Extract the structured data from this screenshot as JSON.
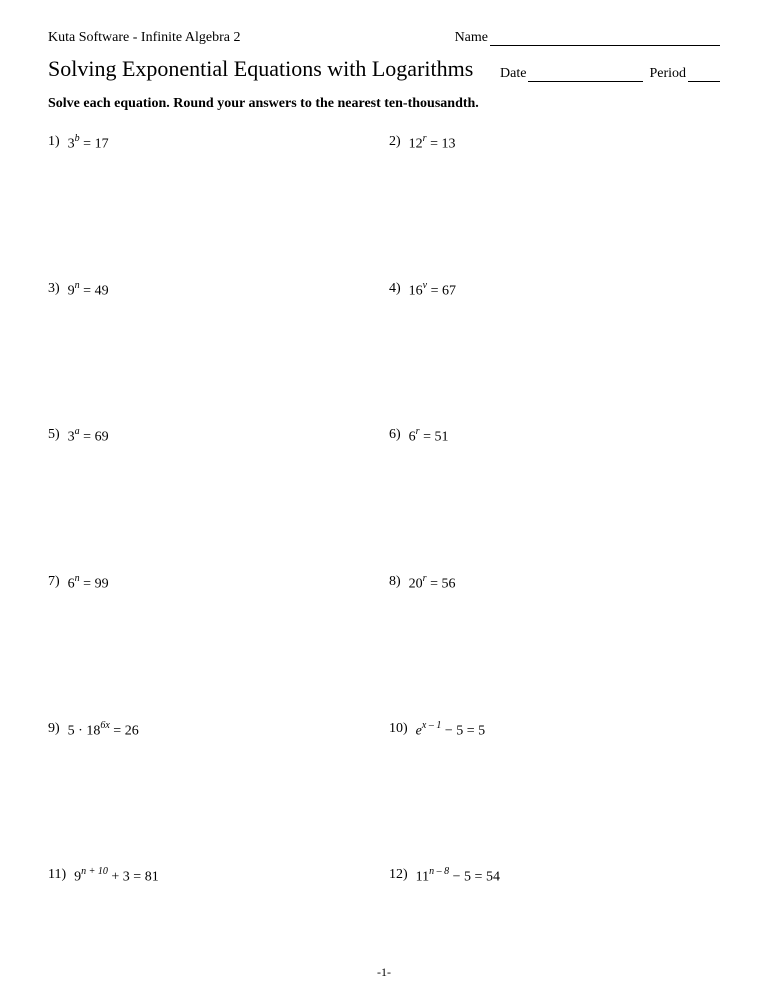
{
  "header": {
    "software": "Kuta Software - Infinite Algebra 2",
    "name_label": "Name"
  },
  "title": "Solving Exponential Equations with Logarithms",
  "date_label": "Date",
  "period_label": "Period",
  "instructions": "Solve each equation.  Round your answers to the nearest ten-thousandth.",
  "problems": [
    {
      "num": "1)",
      "base": "3",
      "exp": "b",
      "rhs": " = 17"
    },
    {
      "num": "2)",
      "base": "12",
      "exp": "r",
      "rhs": " = 13"
    },
    {
      "num": "3)",
      "base": "9",
      "exp": "n",
      "rhs": " = 49"
    },
    {
      "num": "4)",
      "base": "16",
      "exp": "v",
      "rhs": " = 67"
    },
    {
      "num": "5)",
      "base": "3",
      "exp": "a",
      "rhs": " = 69"
    },
    {
      "num": "6)",
      "base": "6",
      "exp": "r",
      "rhs": " = 51"
    },
    {
      "num": "7)",
      "base": "6",
      "exp": "n",
      "rhs": " = 99"
    },
    {
      "num": "8)",
      "base": "20",
      "exp": "r",
      "rhs": " = 56"
    },
    {
      "num": "9)",
      "pre": "5 · ",
      "base": "18",
      "exp": "6x",
      "rhs": " = 26"
    },
    {
      "num": "10)",
      "base_ital": "e",
      "exp": "x – 1",
      "rhs": " − 5 = 5"
    },
    {
      "num": "11)",
      "base": "9",
      "exp": "n + 10",
      "rhs": " + 3 = 81"
    },
    {
      "num": "12)",
      "base": "11",
      "exp": "n – 8",
      "rhs": " − 5 = 54"
    }
  ],
  "footer": "-1-"
}
